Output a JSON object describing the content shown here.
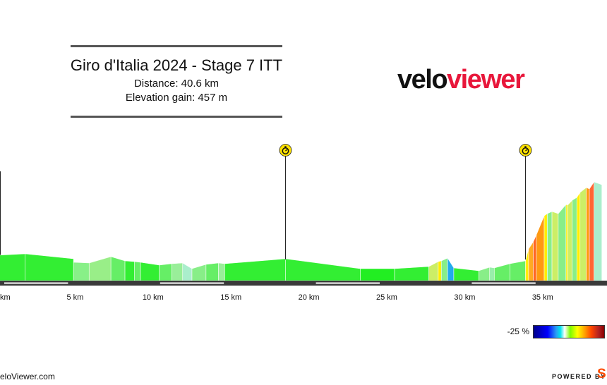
{
  "header": {
    "title": "Giro d'Italia 2024 - Stage 7 ITT",
    "distance": "Distance: 40.6 km",
    "elevation_gain": "Elevation gain: 457 m"
  },
  "brand": {
    "velo": "velo",
    "viewer": "viewer"
  },
  "legend": {
    "label": "-25 %"
  },
  "footer": {
    "left": "eloViewer.com",
    "right": "POWERED BY",
    "right_logo": "S"
  },
  "colors": {
    "accent": "#e8173b",
    "strava": "#fc4c02",
    "axis": "#3a3a3a",
    "marker": "#ffe100"
  },
  "chart_data": {
    "type": "area",
    "title": "Giro d'Italia 2024 - Stage 7 ITT",
    "xlabel": "",
    "ylabel": "",
    "xlim": [
      0,
      38.8
    ],
    "x_ticks": [
      0,
      5,
      10,
      15,
      20,
      25,
      30,
      35
    ],
    "x_tick_labels": [
      "km",
      "5 km",
      "10 km",
      "15 km",
      "20 km",
      "25 km",
      "30 km",
      "35 km"
    ],
    "markers": [
      {
        "km": 18.5,
        "icon": "stopwatch-icon",
        "label": "intermediate time check"
      },
      {
        "km": 33.9,
        "icon": "stopwatch-icon",
        "label": "intermediate time check"
      }
    ],
    "segments": [
      {
        "x": [
          0.0,
          1.8
        ],
        "y": [
          36,
          38
        ],
        "color": "#33ee33"
      },
      {
        "x": [
          1.8,
          4.9
        ],
        "y": [
          38,
          31
        ],
        "color": "#33ee33"
      },
      {
        "x": [
          4.9,
          5.9
        ],
        "y": [
          26,
          25
        ],
        "color": "#88f088"
      },
      {
        "x": [
          5.9,
          7.3
        ],
        "y": [
          25,
          34
        ],
        "color": "#99ee88"
      },
      {
        "x": [
          7.3,
          8.2
        ],
        "y": [
          34,
          28
        ],
        "color": "#66ee66"
      },
      {
        "x": [
          8.2,
          8.8
        ],
        "y": [
          28,
          27
        ],
        "color": "#33ee33"
      },
      {
        "x": [
          8.8,
          9.2
        ],
        "y": [
          27,
          26
        ],
        "color": "#66ee66"
      },
      {
        "x": [
          9.2,
          10.4
        ],
        "y": [
          26,
          22
        ],
        "color": "#33ee33"
      },
      {
        "x": [
          10.4,
          11.2
        ],
        "y": [
          22,
          24
        ],
        "color": "#66ee66"
      },
      {
        "x": [
          11.2,
          11.9
        ],
        "y": [
          24,
          25
        ],
        "color": "#99ee99"
      },
      {
        "x": [
          11.9,
          12.5
        ],
        "y": [
          25,
          17
        ],
        "color": "#aaeecc"
      },
      {
        "x": [
          12.5,
          13.4
        ],
        "y": [
          17,
          23
        ],
        "color": "#88ee88"
      },
      {
        "x": [
          13.4,
          14.2
        ],
        "y": [
          23,
          25
        ],
        "color": "#66ee66"
      },
      {
        "x": [
          14.2,
          14.6
        ],
        "y": [
          25,
          24
        ],
        "color": "#99ee99"
      },
      {
        "x": [
          14.6,
          18.5
        ],
        "y": [
          24,
          31
        ],
        "color": "#33ee33"
      },
      {
        "x": [
          18.5,
          23.3
        ],
        "y": [
          31,
          17
        ],
        "color": "#33ee33"
      },
      {
        "x": [
          23.3,
          25.5
        ],
        "y": [
          17,
          17
        ],
        "color": "#22ee22"
      },
      {
        "x": [
          25.5,
          27.7
        ],
        "y": [
          17,
          20
        ],
        "color": "#33ee33"
      },
      {
        "x": [
          27.7,
          28.3
        ],
        "y": [
          20,
          27
        ],
        "color": "#ccee66"
      },
      {
        "x": [
          28.3,
          28.5
        ],
        "y": [
          27,
          28
        ],
        "color": "#ffee00"
      },
      {
        "x": [
          28.5,
          28.9
        ],
        "y": [
          28,
          32
        ],
        "color": "#88ee88"
      },
      {
        "x": [
          28.9,
          29.3
        ],
        "y": [
          32,
          18
        ],
        "color": "#22aaee"
      },
      {
        "x": [
          29.3,
          30.9
        ],
        "y": [
          18,
          14
        ],
        "color": "#33ee33"
      },
      {
        "x": [
          30.9,
          31.6
        ],
        "y": [
          14,
          19
        ],
        "color": "#88ee88"
      },
      {
        "x": [
          31.6,
          31.9
        ],
        "y": [
          19,
          18
        ],
        "color": "#99eeaa"
      },
      {
        "x": [
          31.9,
          32.9
        ],
        "y": [
          18,
          24
        ],
        "color": "#66ee66"
      },
      {
        "x": [
          32.9,
          33.9
        ],
        "y": [
          24,
          28
        ],
        "color": "#66ee66"
      },
      {
        "x": [
          33.9,
          34.1
        ],
        "y": [
          28,
          45
        ],
        "color": "#ffee00"
      },
      {
        "x": [
          34.1,
          34.4
        ],
        "y": [
          45,
          55
        ],
        "color": "#ffaa22"
      },
      {
        "x": [
          34.4,
          34.6
        ],
        "y": [
          55,
          65
        ],
        "color": "#ff6622"
      },
      {
        "x": [
          34.6,
          35.1
        ],
        "y": [
          65,
          92
        ],
        "color": "#ff9911"
      },
      {
        "x": [
          35.1,
          35.3
        ],
        "y": [
          92,
          95
        ],
        "color": "#ffee00"
      },
      {
        "x": [
          35.3,
          35.6
        ],
        "y": [
          95,
          98
        ],
        "color": "#88ee88"
      },
      {
        "x": [
          35.6,
          36.0
        ],
        "y": [
          98,
          95
        ],
        "color": "#ccee66"
      },
      {
        "x": [
          36.0,
          36.5
        ],
        "y": [
          95,
          108
        ],
        "color": "#88ee88"
      },
      {
        "x": [
          36.5,
          36.6
        ],
        "y": [
          108,
          107
        ],
        "color": "#ffee00"
      },
      {
        "x": [
          36.6,
          36.9
        ],
        "y": [
          107,
          114
        ],
        "color": "#ccee66"
      },
      {
        "x": [
          36.9,
          37.2
        ],
        "y": [
          114,
          118
        ],
        "color": "#88ee88"
      },
      {
        "x": [
          37.2,
          37.4
        ],
        "y": [
          118,
          125
        ],
        "color": "#ffee00"
      },
      {
        "x": [
          37.4,
          37.8
        ],
        "y": [
          125,
          132
        ],
        "color": "#ccee66"
      },
      {
        "x": [
          37.8,
          38.0
        ],
        "y": [
          132,
          130
        ],
        "color": "#ff9911"
      },
      {
        "x": [
          38.0,
          38.3
        ],
        "y": [
          130,
          140
        ],
        "color": "#ff6633"
      },
      {
        "x": [
          38.3,
          38.8
        ],
        "y": [
          140,
          136
        ],
        "color": "#aaeecc"
      }
    ]
  }
}
